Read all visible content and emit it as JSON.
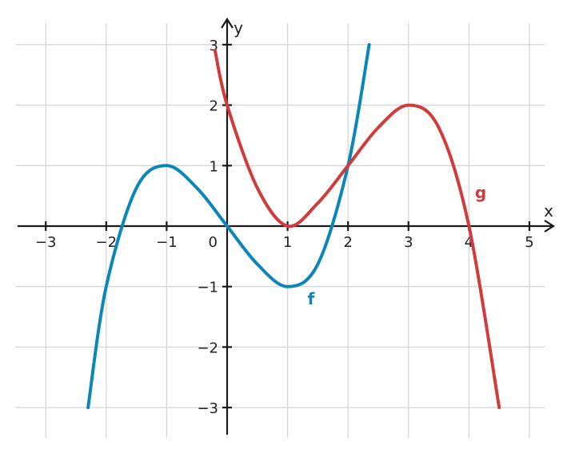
{
  "chart_data": {
    "type": "line",
    "xlabel": "x",
    "ylabel": "y",
    "xlim": [
      -3.3,
      5.4
    ],
    "ylim": [
      -3.4,
      3.3
    ],
    "grid": true,
    "x_ticks": [
      -3,
      -2,
      -1,
      1,
      2,
      3,
      4,
      5
    ],
    "y_ticks": [
      -3,
      -2,
      -1,
      1,
      2,
      3
    ],
    "x_tick_labels": [
      "−3",
      "−2",
      "−1",
      "1",
      "2",
      "3",
      "4",
      "5"
    ],
    "y_tick_labels": [
      "−3",
      "−2",
      "−1",
      "1",
      "2",
      "3"
    ],
    "origin_label": "0",
    "series": [
      {
        "name": "f",
        "color": "#0b86b8",
        "x": [
          -2.3,
          -2,
          -1.5,
          -1,
          -0.5,
          0,
          0.5,
          1,
          1.5,
          2,
          2.35
        ],
        "y": [
          -3.0,
          -1.0,
          0.63,
          1.0,
          0.63,
          0.0,
          -0.63,
          -1.0,
          -0.63,
          1.0,
          3.0
        ]
      },
      {
        "name": "g",
        "color": "#d13b3b",
        "x": [
          -0.2,
          0,
          0.5,
          1,
          1.5,
          2,
          2.5,
          3,
          3.5,
          4,
          4.5
        ],
        "y": [
          2.9,
          2.0,
          0.63,
          0.0,
          0.38,
          1.0,
          1.63,
          2.0,
          1.63,
          0.0,
          -3.0
        ]
      }
    ]
  }
}
